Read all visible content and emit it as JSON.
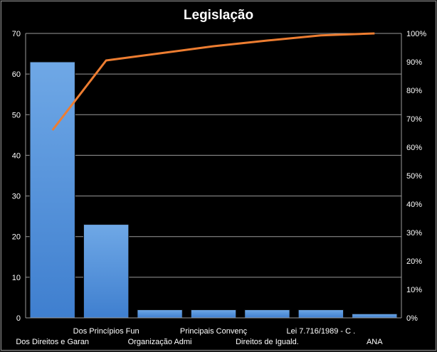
{
  "chart_data": {
    "type": "bar",
    "title": "Legislação",
    "categories": [
      "Dos Direitos e Garan",
      "Dos Princípios Fun",
      "Organização Admi",
      "Principais Convenç",
      "Direitos de Iguald.",
      "Lei 7.716/1989 - C .",
      "ANA"
    ],
    "series": [
      {
        "type": "bar",
        "values": [
          63,
          23,
          2,
          2,
          2,
          2,
          1
        ],
        "color": "#4a8fd9"
      },
      {
        "type": "line",
        "axis": "right",
        "values": [
          66,
          90.5,
          93,
          95.5,
          97.5,
          99.3,
          100
        ],
        "color": "#ed7d31"
      }
    ],
    "y_left": {
      "min": 0,
      "max": 70,
      "ticks": [
        "0",
        "10",
        "20",
        "30",
        "40",
        "50",
        "60",
        "70"
      ]
    },
    "y_right": {
      "min": 0,
      "max": 100,
      "ticks": [
        "0%",
        "10%",
        "20%",
        "30%",
        "40%",
        "50%",
        "60%",
        "70%",
        "80%",
        "90%",
        "100%"
      ]
    },
    "grid": true,
    "legend": "none",
    "xlabel": "",
    "ylabel": ""
  }
}
